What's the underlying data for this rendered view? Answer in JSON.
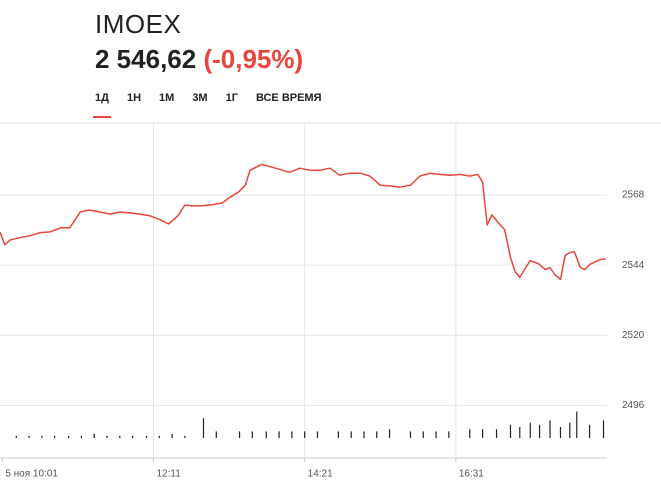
{
  "header": {
    "ticker": "IMOEX",
    "price": "2 546,62",
    "change": "(-0,95%)",
    "change_color": "#e8453c"
  },
  "tabs": {
    "items": [
      "1Д",
      "1Н",
      "1М",
      "3М",
      "1Г",
      "ВСЕ ВРЕМЯ"
    ],
    "active": 0
  },
  "chart_data": {
    "type": "line",
    "color": "#e8453c",
    "x": [
      599,
      603,
      608,
      616,
      625,
      633,
      642,
      651,
      659,
      668,
      676,
      685,
      694,
      702,
      711,
      719,
      728,
      737,
      744,
      752,
      758,
      764,
      771,
      780,
      790,
      797,
      804,
      810,
      814,
      824,
      836,
      848,
      857,
      866,
      874,
      883,
      891,
      900,
      909,
      917,
      926,
      936,
      943,
      952,
      960,
      969,
      977,
      986,
      995,
      1003,
      1010,
      1014,
      1018,
      1022,
      1027,
      1033,
      1038,
      1042,
      1046,
      1050,
      1055,
      1062,
      1068,
      1072,
      1076,
      1081,
      1085,
      1089,
      1093,
      1098,
      1102,
      1106,
      1115,
      1120
    ],
    "values": [
      2555.4,
      2551.0,
      2552.7,
      2553.4,
      2554.1,
      2555.1,
      2555.4,
      2556.8,
      2556.8,
      2562.2,
      2562.9,
      2562.2,
      2561.5,
      2562.2,
      2561.9,
      2561.5,
      2560.9,
      2559.5,
      2558.1,
      2560.9,
      2564.6,
      2564.3,
      2564.3,
      2564.6,
      2565.3,
      2567.3,
      2569.0,
      2571.4,
      2576.5,
      2578.5,
      2577.2,
      2575.8,
      2577.2,
      2576.5,
      2576.5,
      2577.2,
      2574.8,
      2575.5,
      2575.5,
      2574.5,
      2571.4,
      2571.1,
      2570.7,
      2571.4,
      2574.5,
      2575.5,
      2575.1,
      2574.8,
      2575.1,
      2574.5,
      2575.1,
      2572.4,
      2557.8,
      2561.2,
      2558.8,
      2556.1,
      2546.6,
      2541.8,
      2539.8,
      2542.5,
      2545.6,
      2544.5,
      2542.5,
      2543.2,
      2540.8,
      2539.1,
      2547.3,
      2548.3,
      2548.6,
      2543.2,
      2542.5,
      2544.2,
      2545.9,
      2546.2
    ],
    "xlim": [
      599,
      1121
    ],
    "ylim": [
      2479,
      2592
    ],
    "xticks": [
      {
        "value": 601,
        "label": "5 ноя 10:01"
      },
      {
        "value": 731,
        "label": "12:11"
      },
      {
        "value": 861,
        "label": "14:21"
      },
      {
        "value": 991,
        "label": "16:31"
      }
    ],
    "yticks": [
      2496,
      2520,
      2544,
      2568
    ],
    "grid": true,
    "volume": {
      "color": "#222222",
      "x": [
        613,
        624,
        635,
        646,
        658,
        669,
        680,
        691,
        702,
        713,
        725,
        736,
        747,
        758,
        774,
        785,
        805,
        816,
        828,
        839,
        850,
        861,
        872,
        890,
        901,
        912,
        923,
        934,
        952,
        963,
        974,
        985,
        1003,
        1014,
        1026,
        1038,
        1046,
        1055,
        1063,
        1072,
        1081,
        1089,
        1095,
        1106,
        1118
      ],
      "values": [
        1,
        1,
        1,
        1,
        1,
        1,
        2,
        1,
        1,
        1,
        1,
        1,
        2,
        1,
        9,
        3,
        3,
        3,
        3,
        3,
        3,
        3,
        3,
        3,
        3,
        3,
        3,
        4,
        3,
        3,
        3,
        3,
        4,
        4,
        4,
        6,
        5,
        7,
        6,
        8,
        5,
        7,
        12,
        6,
        8
      ]
    }
  }
}
